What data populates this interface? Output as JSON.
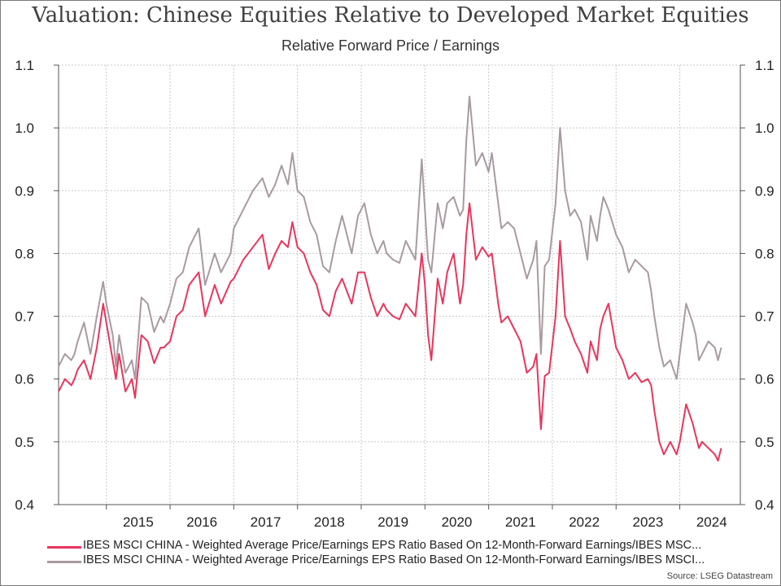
{
  "chart_data": {
    "type": "line",
    "title": "Valuation: Chinese Equities Relative to Developed Market Equities",
    "subtitle": "Relative Forward Price / Earnings",
    "ylim": [
      0.4,
      1.1
    ],
    "y_ticks": [
      "0.4",
      "0.5",
      "0.6",
      "0.7",
      "0.8",
      "0.9",
      "1.0",
      "1.1"
    ],
    "xlim": [
      2014.25,
      2024.95
    ],
    "x_tick_labels": [
      "2015",
      "2016",
      "2017",
      "2018",
      "2019",
      "2020",
      "2021",
      "2022",
      "2023",
      "2024"
    ],
    "year_boundaries": [
      2015,
      2016,
      2017,
      2018,
      2019,
      2020,
      2021,
      2022,
      2023,
      2024
    ],
    "grid": true,
    "legend_position": "bottom",
    "series": [
      {
        "name": "IBES MSCI CHINA - Weighted Average Price/Earnings EPS Ratio Based On 12-Month-Forward Earnings/IBES MSC...",
        "color": "#e8365d",
        "x": [
          2014.25,
          2014.35,
          2014.45,
          2014.5,
          2014.55,
          2014.65,
          2014.75,
          2014.85,
          2014.95,
          2015.0,
          2015.1,
          2015.15,
          2015.2,
          2015.3,
          2015.4,
          2015.45,
          2015.55,
          2015.65,
          2015.75,
          2015.85,
          2015.9,
          2016.0,
          2016.1,
          2016.2,
          2016.3,
          2016.45,
          2016.55,
          2016.7,
          2016.8,
          2016.95,
          2017.0,
          2017.15,
          2017.3,
          2017.45,
          2017.55,
          2017.65,
          2017.75,
          2017.85,
          2017.92,
          2018.0,
          2018.1,
          2018.2,
          2018.3,
          2018.4,
          2018.5,
          2018.6,
          2018.7,
          2018.85,
          2018.95,
          2019.05,
          2019.15,
          2019.25,
          2019.35,
          2019.4,
          2019.5,
          2019.6,
          2019.7,
          2019.85,
          2019.95,
          2020.0,
          2020.05,
          2020.1,
          2020.2,
          2020.28,
          2020.35,
          2020.45,
          2020.55,
          2020.6,
          2020.65,
          2020.7,
          2020.8,
          2020.9,
          2021.0,
          2021.05,
          2021.15,
          2021.2,
          2021.3,
          2021.4,
          2021.5,
          2021.6,
          2021.7,
          2021.75,
          2021.82,
          2021.88,
          2021.95,
          2022.05,
          2022.12,
          2022.2,
          2022.28,
          2022.35,
          2022.45,
          2022.55,
          2022.6,
          2022.7,
          2022.75,
          2022.8,
          2022.88,
          2023.0,
          2023.1,
          2023.2,
          2023.3,
          2023.4,
          2023.5,
          2023.55,
          2023.6,
          2023.68,
          2023.75,
          2023.85,
          2023.95,
          2024.0,
          2024.1,
          2024.2,
          2024.25,
          2024.3,
          2024.35,
          2024.45,
          2024.55,
          2024.6,
          2024.65
        ],
        "values": [
          0.58,
          0.6,
          0.59,
          0.6,
          0.615,
          0.63,
          0.6,
          0.65,
          0.72,
          0.69,
          0.63,
          0.6,
          0.64,
          0.58,
          0.6,
          0.57,
          0.67,
          0.66,
          0.625,
          0.65,
          0.65,
          0.66,
          0.7,
          0.71,
          0.75,
          0.77,
          0.7,
          0.75,
          0.72,
          0.755,
          0.76,
          0.79,
          0.81,
          0.83,
          0.775,
          0.8,
          0.82,
          0.81,
          0.85,
          0.81,
          0.8,
          0.77,
          0.75,
          0.71,
          0.7,
          0.74,
          0.76,
          0.72,
          0.77,
          0.77,
          0.73,
          0.7,
          0.72,
          0.71,
          0.7,
          0.695,
          0.72,
          0.7,
          0.8,
          0.75,
          0.67,
          0.63,
          0.76,
          0.72,
          0.77,
          0.8,
          0.72,
          0.75,
          0.83,
          0.88,
          0.79,
          0.81,
          0.795,
          0.8,
          0.72,
          0.69,
          0.7,
          0.68,
          0.66,
          0.61,
          0.62,
          0.64,
          0.52,
          0.605,
          0.61,
          0.7,
          0.82,
          0.7,
          0.68,
          0.66,
          0.64,
          0.61,
          0.66,
          0.63,
          0.68,
          0.7,
          0.72,
          0.65,
          0.63,
          0.6,
          0.61,
          0.595,
          0.6,
          0.59,
          0.55,
          0.5,
          0.48,
          0.5,
          0.48,
          0.5,
          0.56,
          0.53,
          0.51,
          0.49,
          0.5,
          0.49,
          0.48,
          0.47,
          0.49
        ]
      },
      {
        "name": "IBES MSCI CHINA - Weighted Average Price/Earnings EPS Ratio Based On 12-Month-Forward Earnings/IBES MSCI...",
        "color": "#a89aa2",
        "x": [
          2014.25,
          2014.35,
          2014.45,
          2014.5,
          2014.55,
          2014.65,
          2014.75,
          2014.85,
          2014.95,
          2015.0,
          2015.1,
          2015.15,
          2015.2,
          2015.3,
          2015.4,
          2015.45,
          2015.55,
          2015.65,
          2015.75,
          2015.85,
          2015.9,
          2016.0,
          2016.1,
          2016.2,
          2016.3,
          2016.45,
          2016.55,
          2016.7,
          2016.8,
          2016.95,
          2017.0,
          2017.15,
          2017.3,
          2017.45,
          2017.55,
          2017.65,
          2017.75,
          2017.85,
          2017.92,
          2018.0,
          2018.1,
          2018.2,
          2018.3,
          2018.4,
          2018.5,
          2018.6,
          2018.7,
          2018.85,
          2018.95,
          2019.05,
          2019.15,
          2019.25,
          2019.35,
          2019.4,
          2019.5,
          2019.6,
          2019.7,
          2019.85,
          2019.95,
          2020.0,
          2020.05,
          2020.1,
          2020.2,
          2020.28,
          2020.35,
          2020.45,
          2020.55,
          2020.6,
          2020.65,
          2020.7,
          2020.8,
          2020.9,
          2021.0,
          2021.05,
          2021.15,
          2021.2,
          2021.3,
          2021.4,
          2021.5,
          2021.6,
          2021.7,
          2021.75,
          2021.82,
          2021.88,
          2021.95,
          2022.05,
          2022.12,
          2022.2,
          2022.28,
          2022.35,
          2022.45,
          2022.55,
          2022.6,
          2022.7,
          2022.75,
          2022.8,
          2022.88,
          2023.0,
          2023.1,
          2023.2,
          2023.3,
          2023.4,
          2023.5,
          2023.55,
          2023.6,
          2023.68,
          2023.75,
          2023.85,
          2023.95,
          2024.0,
          2024.1,
          2024.2,
          2024.25,
          2024.3,
          2024.35,
          2024.45,
          2024.55,
          2024.6,
          2024.65
        ],
        "values": [
          0.62,
          0.64,
          0.63,
          0.64,
          0.66,
          0.69,
          0.64,
          0.7,
          0.755,
          0.72,
          0.67,
          0.62,
          0.67,
          0.61,
          0.63,
          0.6,
          0.73,
          0.72,
          0.675,
          0.7,
          0.69,
          0.72,
          0.76,
          0.77,
          0.81,
          0.84,
          0.75,
          0.8,
          0.77,
          0.8,
          0.84,
          0.87,
          0.9,
          0.92,
          0.89,
          0.91,
          0.94,
          0.91,
          0.96,
          0.9,
          0.89,
          0.85,
          0.83,
          0.78,
          0.77,
          0.82,
          0.86,
          0.8,
          0.86,
          0.88,
          0.83,
          0.8,
          0.82,
          0.8,
          0.79,
          0.785,
          0.82,
          0.79,
          0.95,
          0.87,
          0.79,
          0.77,
          0.88,
          0.84,
          0.88,
          0.89,
          0.86,
          0.87,
          0.98,
          1.05,
          0.94,
          0.96,
          0.93,
          0.96,
          0.88,
          0.84,
          0.85,
          0.84,
          0.8,
          0.76,
          0.79,
          0.82,
          0.64,
          0.78,
          0.79,
          0.88,
          1.0,
          0.9,
          0.86,
          0.87,
          0.85,
          0.79,
          0.86,
          0.82,
          0.86,
          0.89,
          0.87,
          0.83,
          0.81,
          0.77,
          0.79,
          0.78,
          0.77,
          0.74,
          0.7,
          0.65,
          0.62,
          0.63,
          0.6,
          0.64,
          0.72,
          0.69,
          0.67,
          0.63,
          0.64,
          0.66,
          0.65,
          0.63,
          0.65
        ]
      }
    ]
  },
  "source": "Source: LSEG Datastream"
}
